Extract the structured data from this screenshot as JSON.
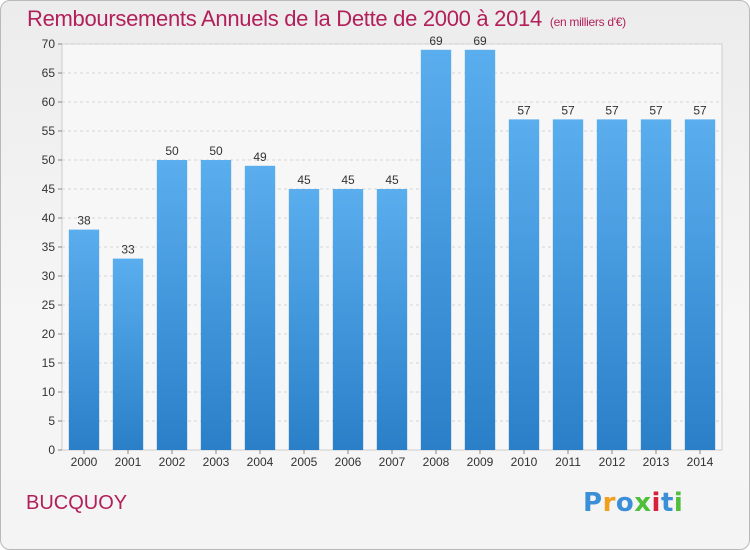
{
  "chart_data": {
    "type": "bar",
    "title": "Remboursements Annuels de la Dette de 2000 à 2014",
    "subtitle": "(en milliers d'€)",
    "categories": [
      "2000",
      "2001",
      "2002",
      "2003",
      "2004",
      "2005",
      "2006",
      "2007",
      "2008",
      "2009",
      "2010",
      "2011",
      "2012",
      "2013",
      "2014"
    ],
    "values": [
      38,
      33,
      50,
      50,
      49,
      45,
      45,
      45,
      69,
      69,
      57,
      57,
      57,
      57,
      57
    ],
    "ylim": [
      0,
      70
    ],
    "yticks": [
      0,
      5,
      10,
      15,
      20,
      25,
      30,
      35,
      40,
      45,
      50,
      55,
      60,
      65,
      70
    ],
    "grid": true,
    "bar_color": "#4a9fe6"
  },
  "location": "BUCQUOY",
  "logo": {
    "letters": [
      "P",
      "r",
      "o",
      "x",
      "i",
      "t",
      "i"
    ],
    "colors": [
      "#3b8fd6",
      "#f0a01c",
      "#3b8fd6",
      "#4fbf3c",
      "#d8203c",
      "#3b8fd6",
      "#4fbf3c"
    ]
  }
}
